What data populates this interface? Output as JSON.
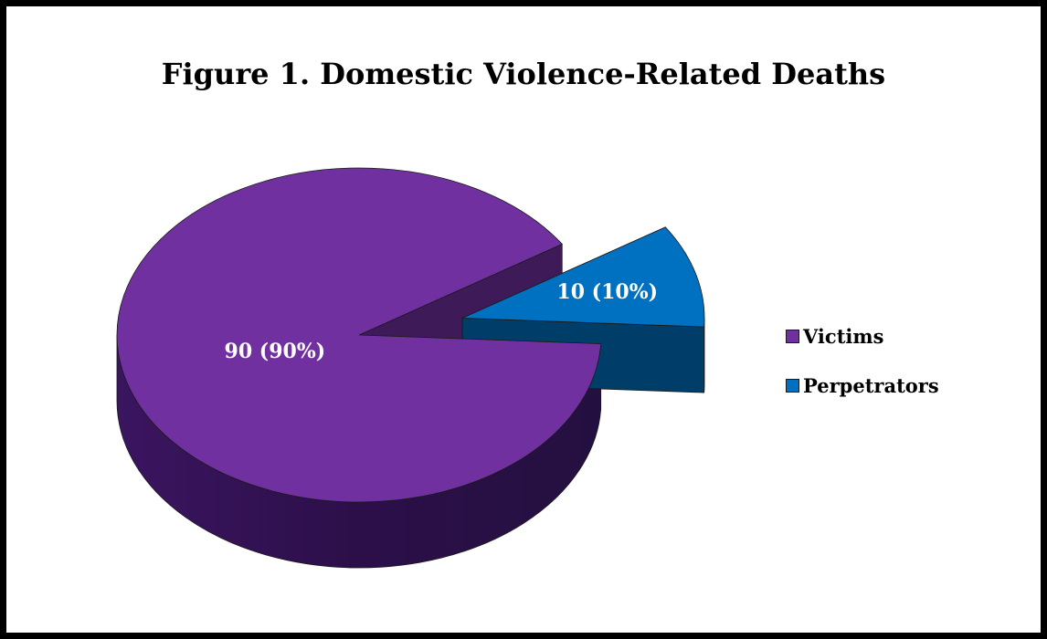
{
  "chart_data": {
    "type": "pie",
    "title": "Figure 1. Domestic Violence-Related Deaths",
    "categories": [
      "Victims",
      "Perpetrators"
    ],
    "values": [
      90,
      10
    ],
    "percents": [
      90,
      10
    ],
    "data_labels": [
      "90 (90%)",
      "10 (10%)"
    ],
    "colors": [
      "#7030A0",
      "#0070C0"
    ],
    "exploded": [
      "Perpetrators"
    ],
    "legend_position": "right"
  }
}
